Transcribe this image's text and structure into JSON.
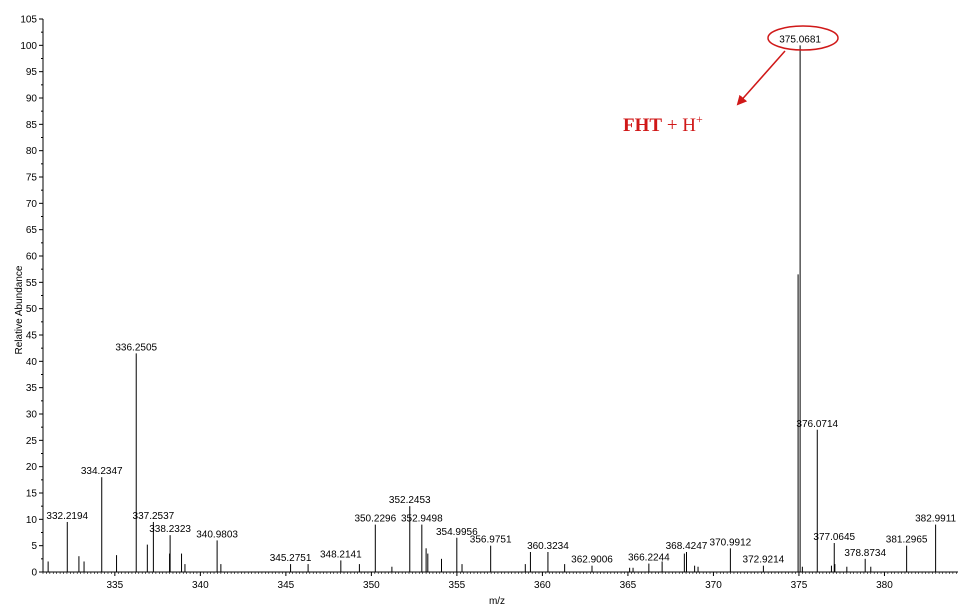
{
  "chart_data": {
    "type": "bar",
    "title": "",
    "xlabel": "m/z",
    "ylabel": "Relative Abundance",
    "xlim": [
      330.8,
      384.3
    ],
    "ylim": [
      0,
      105
    ],
    "x_ticks": [
      335,
      340,
      345,
      350,
      355,
      360,
      365,
      370,
      375,
      380
    ],
    "y_ticks": [
      0,
      5,
      10,
      15,
      20,
      25,
      30,
      35,
      40,
      45,
      50,
      55,
      60,
      65,
      70,
      75,
      80,
      85,
      90,
      95,
      100,
      105
    ],
    "colors": {
      "peaks": "#000000",
      "annotation": "#d01818"
    },
    "labeled_peaks": [
      {
        "mz": 332.2194,
        "intensity": 9.5,
        "label": "332.2194"
      },
      {
        "mz": 334.2347,
        "intensity": 18,
        "label": "334.2347"
      },
      {
        "mz": 336.2505,
        "intensity": 41.5,
        "label": "336.2505"
      },
      {
        "mz": 337.2537,
        "intensity": 9.5,
        "label": "337.2537"
      },
      {
        "mz": 338.2323,
        "intensity": 7,
        "label": "338.2323"
      },
      {
        "mz": 340.9803,
        "intensity": 6,
        "label": "340.9803"
      },
      {
        "mz": 345.2751,
        "intensity": 1.5,
        "label": "345.2751"
      },
      {
        "mz": 348.2141,
        "intensity": 2.2,
        "label": "348.2141"
      },
      {
        "mz": 350.2296,
        "intensity": 9,
        "label": "350.2296"
      },
      {
        "mz": 352.2453,
        "intensity": 12.5,
        "label": "352.2453"
      },
      {
        "mz": 352.9498,
        "intensity": 9,
        "label": "352.9498"
      },
      {
        "mz": 354.9956,
        "intensity": 6.5,
        "label": "354.9956"
      },
      {
        "mz": 356.9751,
        "intensity": 5,
        "label": "356.9751"
      },
      {
        "mz": 360.3234,
        "intensity": 3.8,
        "label": "360.3234"
      },
      {
        "mz": 362.9006,
        "intensity": 1.2,
        "label": "362.9006"
      },
      {
        "mz": 366.2244,
        "intensity": 1.6,
        "label": "366.2244"
      },
      {
        "mz": 368.4247,
        "intensity": 3.8,
        "label": "368.4247"
      },
      {
        "mz": 370.9912,
        "intensity": 4.5,
        "label": "370.9912"
      },
      {
        "mz": 372.9214,
        "intensity": 1.2,
        "label": "372.9214"
      },
      {
        "mz": 375.0681,
        "intensity": 100,
        "label": "375.0681"
      },
      {
        "mz": 376.0714,
        "intensity": 27,
        "label": "376.0714"
      },
      {
        "mz": 377.0645,
        "intensity": 5.5,
        "label": "377.0645"
      },
      {
        "mz": 378.8734,
        "intensity": 2.5,
        "label": "378.8734"
      },
      {
        "mz": 381.2965,
        "intensity": 5,
        "label": "381.2965"
      },
      {
        "mz": 382.9911,
        "intensity": 9,
        "label": "382.9911"
      }
    ],
    "minor_peaks": [
      {
        "mz": 331.1,
        "intensity": 2
      },
      {
        "mz": 332.9,
        "intensity": 3
      },
      {
        "mz": 333.2,
        "intensity": 2
      },
      {
        "mz": 335.1,
        "intensity": 3.2
      },
      {
        "mz": 336.9,
        "intensity": 5.2
      },
      {
        "mz": 338.2,
        "intensity": 3.5
      },
      {
        "mz": 338.9,
        "intensity": 3.5
      },
      {
        "mz": 339.1,
        "intensity": 1.5
      },
      {
        "mz": 341.2,
        "intensity": 1.5
      },
      {
        "mz": 346.3,
        "intensity": 1.5
      },
      {
        "mz": 349.3,
        "intensity": 1.5
      },
      {
        "mz": 351.2,
        "intensity": 1
      },
      {
        "mz": 353.2,
        "intensity": 4.5
      },
      {
        "mz": 353.3,
        "intensity": 3.5
      },
      {
        "mz": 354.1,
        "intensity": 2.5
      },
      {
        "mz": 355.3,
        "intensity": 1.5
      },
      {
        "mz": 359.0,
        "intensity": 1.5
      },
      {
        "mz": 359.3,
        "intensity": 3.8
      },
      {
        "mz": 361.3,
        "intensity": 1.5
      },
      {
        "mz": 365.1,
        "intensity": 0.8
      },
      {
        "mz": 365.3,
        "intensity": 0.8
      },
      {
        "mz": 367.0,
        "intensity": 2
      },
      {
        "mz": 368.3,
        "intensity": 3.5
      },
      {
        "mz": 368.9,
        "intensity": 1.2
      },
      {
        "mz": 369.1,
        "intensity": 1
      },
      {
        "mz": 374.95,
        "intensity": 56.5
      },
      {
        "mz": 375.2,
        "intensity": 1
      },
      {
        "mz": 376.9,
        "intensity": 1.2
      },
      {
        "mz": 377.1,
        "intensity": 1.5
      },
      {
        "mz": 377.8,
        "intensity": 1
      },
      {
        "mz": 379.2,
        "intensity": 1
      }
    ]
  },
  "annotation": {
    "highlight_label": "375.0681",
    "compound_bold": "FHT",
    "compound_rest": " + H",
    "compound_sup": "+"
  }
}
